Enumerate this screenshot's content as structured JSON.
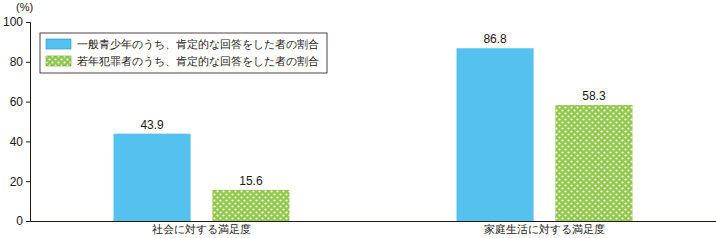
{
  "chart_data": {
    "type": "bar",
    "ylabel": "(%)",
    "categories": [
      "社会に対する満足度",
      "家庭生活に対する満足度"
    ],
    "series": [
      {
        "name": "一般青少年のうち、肯定的な回答をした者の割合",
        "color": "#55c1ef",
        "values": [
          43.9,
          86.8
        ]
      },
      {
        "name": "若年犯罪者のうち、肯定的な回答をした者の割合",
        "color": "#92c94a",
        "values": [
          15.6,
          58.3
        ]
      }
    ],
    "ylim": [
      0,
      100
    ],
    "yticks": [
      0,
      20,
      40,
      60,
      80,
      100
    ],
    "grid": false,
    "legend": "upper left",
    "data_labels": true
  }
}
